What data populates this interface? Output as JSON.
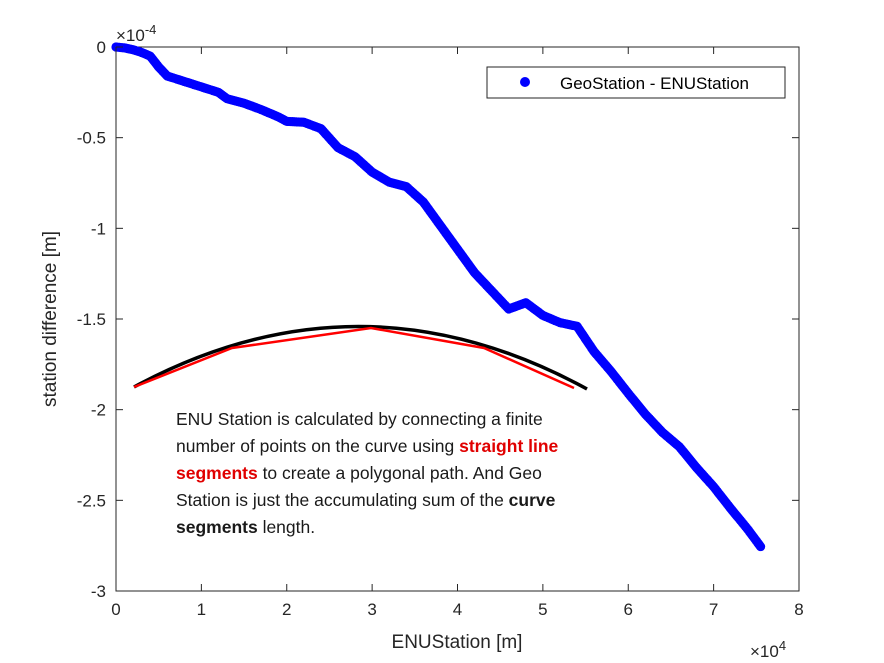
{
  "chart_data": {
    "type": "scatter",
    "xlabel": "ENUStation [m]",
    "ylabel": "station difference [m]",
    "x_exponent": "×10",
    "x_exponent_power": "4",
    "y_exponent": "×10",
    "y_exponent_power": "-4",
    "xlim": [
      0,
      80000
    ],
    "ylim": [
      -0.0003,
      0
    ],
    "xticks": [
      0,
      10000,
      20000,
      30000,
      40000,
      50000,
      60000,
      70000,
      80000
    ],
    "xtick_labels": [
      "0",
      "1",
      "2",
      "3",
      "4",
      "5",
      "6",
      "7",
      "8"
    ],
    "yticks": [
      0,
      -5e-05,
      -0.0001,
      -0.00015,
      -0.0002,
      -0.00025,
      -0.0003
    ],
    "ytick_labels": [
      "0",
      "-0.5",
      "-1",
      "-1.5",
      "-2",
      "-2.5",
      "-3"
    ],
    "grid": false,
    "legend_position": "top-right",
    "series": [
      {
        "name": "GeoStation -  ENUStation",
        "color": "#0000ff",
        "marker": "circle",
        "points": [
          [
            0,
            0
          ],
          [
            1000,
            -5e-07
          ],
          [
            2000,
            -1.5e-06
          ],
          [
            3000,
            -3e-06
          ],
          [
            4000,
            -5e-06
          ],
          [
            5000,
            -1.1e-05
          ],
          [
            6000,
            -1.6e-05
          ],
          [
            8000,
            -1.9e-05
          ],
          [
            10000,
            -2.2e-05
          ],
          [
            12000,
            -2.5e-05
          ],
          [
            13000,
            -2.85e-05
          ],
          [
            15000,
            -3.1e-05
          ],
          [
            17000,
            -3.45e-05
          ],
          [
            19000,
            -3.85e-05
          ],
          [
            20000,
            -4.1e-05
          ],
          [
            22000,
            -4.15e-05
          ],
          [
            24000,
            -4.5e-05
          ],
          [
            26000,
            -5.55e-05
          ],
          [
            28000,
            -6.05e-05
          ],
          [
            30000,
            -6.9e-05
          ],
          [
            32000,
            -7.45e-05
          ],
          [
            34000,
            -7.7e-05
          ],
          [
            36000,
            -8.55e-05
          ],
          [
            38000,
            -9.85e-05
          ],
          [
            40000,
            -0.0001115
          ],
          [
            42000,
            -0.0001245
          ],
          [
            44000,
            -0.0001345
          ],
          [
            46000,
            -0.0001445
          ],
          [
            48000,
            -0.000141
          ],
          [
            50000,
            -0.000148
          ],
          [
            52000,
            -0.000152
          ],
          [
            54000,
            -0.000154
          ],
          [
            56000,
            -0.000168
          ],
          [
            58000,
            -0.000179
          ],
          [
            60000,
            -0.000191
          ],
          [
            62000,
            -0.0002025
          ],
          [
            64000,
            -0.0002125
          ],
          [
            66000,
            -0.0002205
          ],
          [
            68000,
            -0.000232
          ],
          [
            70000,
            -0.0002425
          ],
          [
            72000,
            -0.0002545
          ],
          [
            74000,
            -0.000266
          ],
          [
            75500,
            -0.0002755
          ]
        ]
      }
    ],
    "annotation": {
      "black_arc_color": "#000000",
      "red_segments_color": "#ff0000",
      "text_before": "ENU Station is calculated by connecting a finite number of points on the curve using ",
      "text_red_bold": "straight line segments",
      "text_middle": " to create a polygonal path. And Geo Station is just the accumulating sum of the ",
      "text_bold": "curve segments",
      "text_after": " length."
    }
  }
}
